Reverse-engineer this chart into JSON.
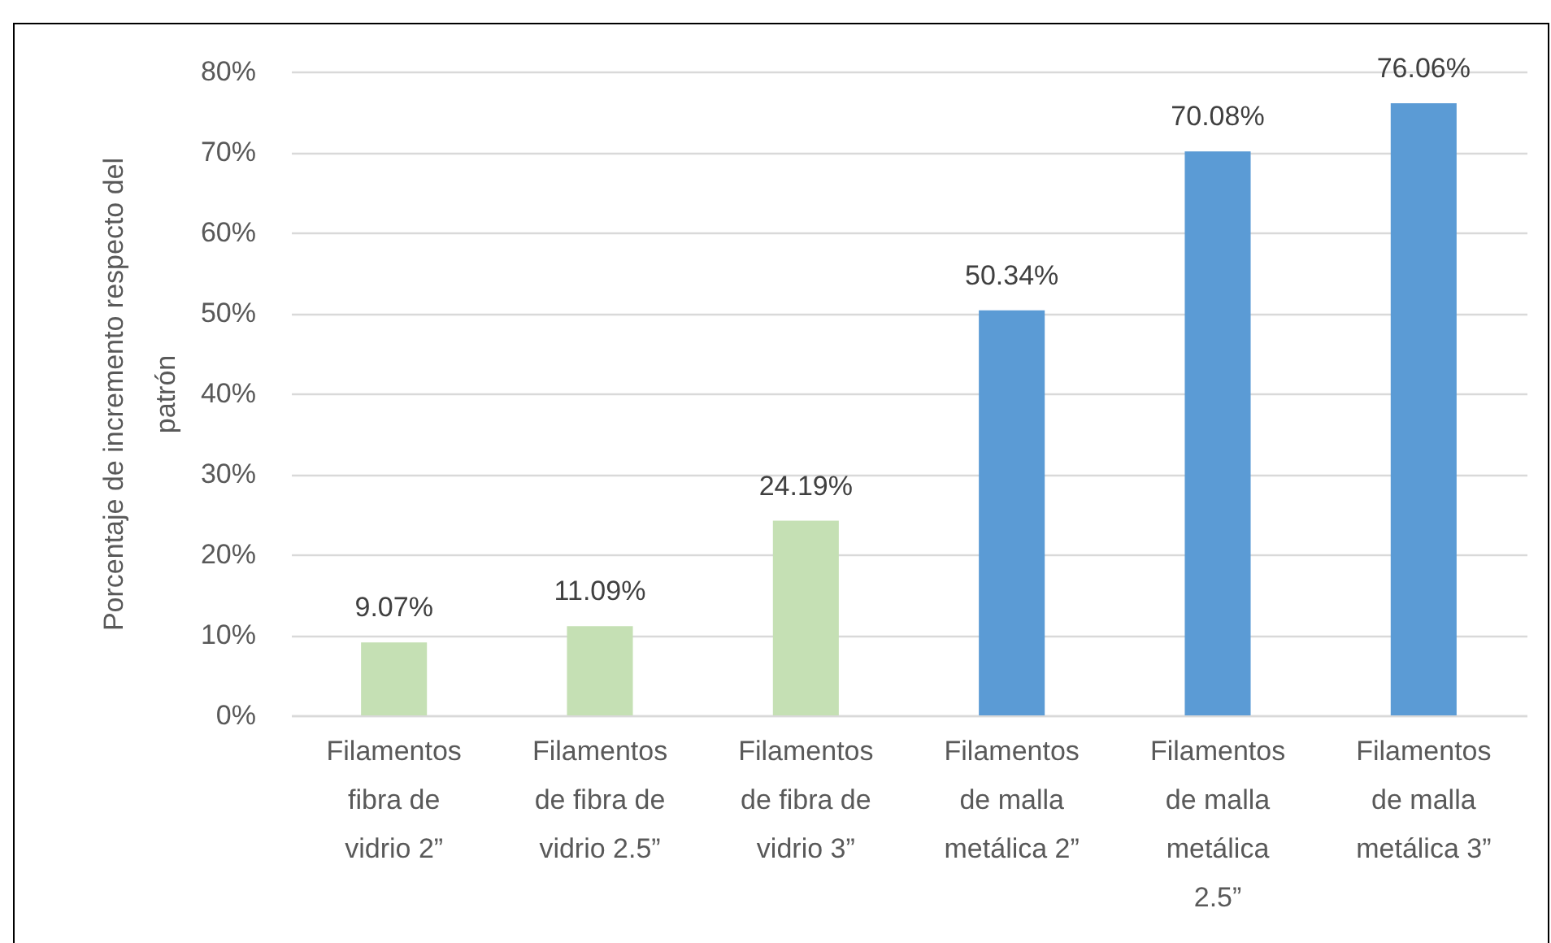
{
  "chart_data": {
    "type": "bar",
    "ylabel": "Porcentaje de incremento respecto del patrón",
    "categories": [
      "Filamentos fibra de vidrio 2”",
      "Filamentos de fibra de vidrio 2.5”",
      "Filamentos de fibra de vidrio 3”",
      "Filamentos de malla metálica 2”",
      "Filamentos de malla metálica 2.5”",
      "Filamentos de malla metálica 3”"
    ],
    "values": [
      9.07,
      11.09,
      24.19,
      50.34,
      70.08,
      76.06
    ],
    "colors": [
      "#c5e0b4",
      "#c5e0b4",
      "#c5e0b4",
      "#5b9bd5",
      "#5b9bd5",
      "#5b9bd5"
    ],
    "value_labels": [
      "9.07%",
      "11.09%",
      "24.19%",
      "50.34%",
      "70.08%",
      "76.06%"
    ],
    "ylim": [
      0,
      80
    ],
    "yticks": [
      {
        "value": 0,
        "label": "0%"
      },
      {
        "value": 10,
        "label": "10%"
      },
      {
        "value": 20,
        "label": "20%"
      },
      {
        "value": 30,
        "label": "30%"
      },
      {
        "value": 40,
        "label": "40%"
      },
      {
        "value": 50,
        "label": "50%"
      },
      {
        "value": 60,
        "label": "60%"
      },
      {
        "value": 70,
        "label": "70%"
      },
      {
        "value": 80,
        "label": "80%"
      }
    ],
    "grid": "y"
  }
}
